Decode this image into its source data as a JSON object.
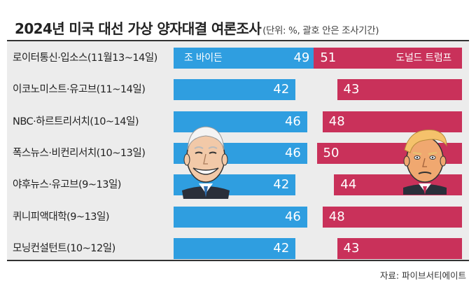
{
  "header": {
    "title": "2024년 미국 대선 가상 양자대결 여론조사",
    "subtitle": "(단위: %, 괄호 안은 조사기간)"
  },
  "candidates": {
    "biden": "조 바이든",
    "trump": "도널드 트럼프"
  },
  "source": "자료: 파이브서티에이트",
  "colors": {
    "biden": "#2f9ee0",
    "trump": "#c9315a",
    "panel": "#ececec"
  },
  "chart_data": {
    "type": "bar",
    "orientation": "horizontal",
    "categories": [
      "로이터통신·입소스(11월13~14일)",
      "이코노미스트·유고브(11~14일)",
      "NBC·하르트리서치(10~14일)",
      "폭스뉴스·비컨리서치(10~13일)",
      "야후뉴스·유고브(9~13일)",
      "퀴니피액대학(9~13일)",
      "모닝컨설턴트(10~12일)"
    ],
    "series": [
      {
        "name": "조 바이든",
        "values": [
          49,
          42,
          46,
          46,
          42,
          46,
          42
        ]
      },
      {
        "name": "도널드 트럼프",
        "values": [
          51,
          43,
          48,
          50,
          44,
          48,
          43
        ]
      }
    ]
  }
}
